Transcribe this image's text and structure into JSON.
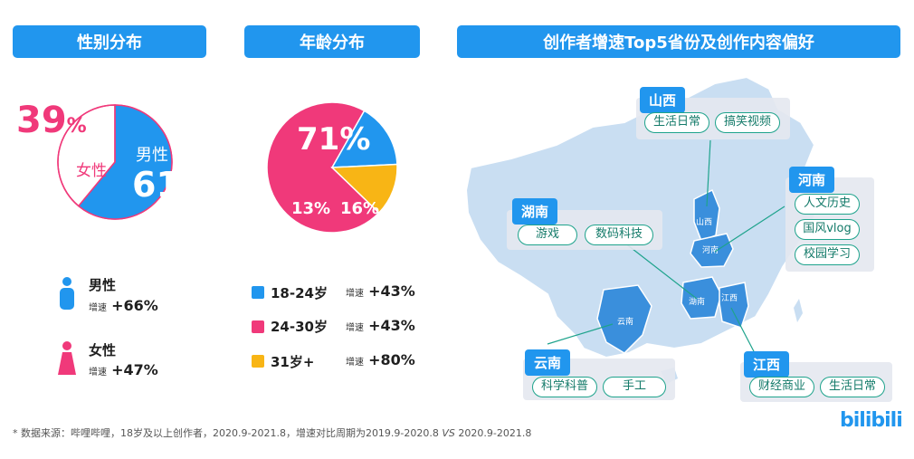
{
  "headers": {
    "gender": "性别分布",
    "age": "年龄分布",
    "top5": "创作者增速Top5省份及创作内容偏好"
  },
  "colors": {
    "blue": "#2196ee",
    "pink": "#f0397a",
    "yellow": "#f8b515",
    "teal": "#1ea38c",
    "map": "#c9def2",
    "map_highlight": "#3a8fdc"
  },
  "chart_data": [
    {
      "type": "pie",
      "title": "性别分布",
      "labels": [
        "男性",
        "女性"
      ],
      "values": [
        61,
        39
      ],
      "value_labels": [
        "61",
        "39"
      ],
      "unit": "%",
      "colors": [
        "#2196ee",
        "#ffffff"
      ],
      "legend": [
        {
          "label": "男性",
          "growth_prefix": "增速",
          "growth": "+66%"
        },
        {
          "label": "女性",
          "growth_prefix": "增速",
          "growth": "+47%"
        }
      ]
    },
    {
      "type": "pie",
      "title": "年龄分布",
      "labels": [
        "24-30岁",
        "18-24岁",
        "31岁+"
      ],
      "values": [
        71,
        16,
        13
      ],
      "value_labels": [
        "71%",
        "16%",
        "13%"
      ],
      "colors": [
        "#f0397a",
        "#2196ee",
        "#f8b515"
      ],
      "legend": [
        {
          "label": "18-24岁",
          "growth_prefix": "增速",
          "growth": "+43%",
          "color": "#2196ee"
        },
        {
          "label": "24-30岁",
          "growth_prefix": "增速",
          "growth": "+43%",
          "color": "#f0397a"
        },
        {
          "label": "31岁+",
          "growth_prefix": "增速",
          "growth": "+80%",
          "color": "#f8b515"
        }
      ]
    }
  ],
  "map": {
    "map_labels": {
      "shanxi": "山西",
      "henan": "河南",
      "hunan": "湖南",
      "jiangxi": "江西",
      "yunnan": "云南"
    },
    "provinces": {
      "shanxi": {
        "name": "山西",
        "tags": [
          "生活日常",
          "搞笑视频"
        ]
      },
      "henan": {
        "name": "河南",
        "tags": [
          "人文历史",
          "国风vlog",
          "校园学习"
        ]
      },
      "hunan": {
        "name": "湖南",
        "tags": [
          "游戏",
          "数码科技"
        ]
      },
      "yunnan": {
        "name": "云南",
        "tags": [
          "科学科普",
          "手工"
        ]
      },
      "jiangxi": {
        "name": "江西",
        "tags": [
          "财经商业",
          "生活日常"
        ]
      }
    }
  },
  "footnote": {
    "text": "* 数据来源：哔哩哔哩，18岁及以上创作者，2020.9-2021.8，增速对比周期为2019.9-2020.8",
    "vs": "VS",
    "period": "2020.9-2021.8"
  },
  "logo": "bilibili"
}
